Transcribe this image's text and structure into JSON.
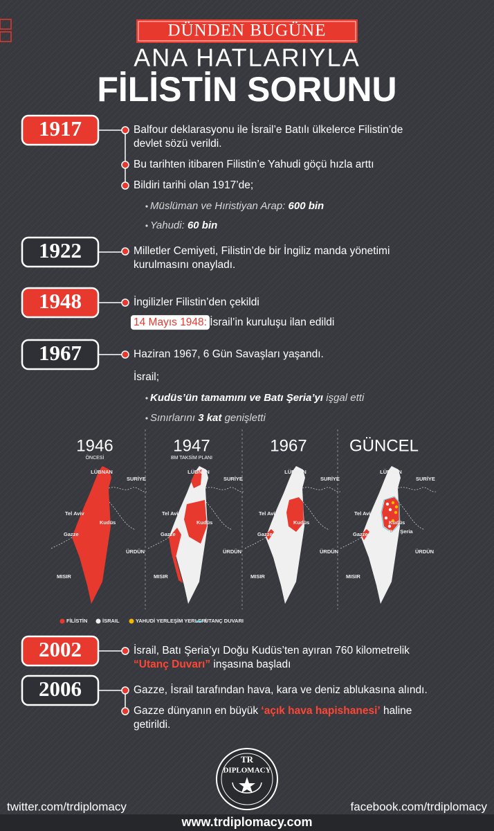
{
  "header": {
    "kicker": "DÜNDEN BUGÜNE",
    "subtitle": "ANA HATLARIYLA",
    "title": "FİLİSTİN SORUNU"
  },
  "timeline": [
    {
      "year": "1917",
      "accent": "red",
      "entries": [
        {
          "kind": "dot",
          "lines": [
            [
              {
                "text": "Balfour deklarasyonu ile İsrail’e Batılı ülkelerce Filistin’de"
              }
            ],
            [
              {
                "text": "devlet sözü verildi."
              }
            ]
          ]
        },
        {
          "kind": "dot",
          "lines": [
            [
              {
                "text": "Bu tarihten itibaren Filistin’e Yahudi göçü hızla arttı"
              }
            ]
          ]
        },
        {
          "kind": "dot",
          "lines": [
            [
              {
                "text": "Bildiri tarihi olan 1917’de;"
              }
            ]
          ]
        },
        {
          "kind": "sub",
          "lines": [
            [
              {
                "text": "Müslüman ve Hıristiyan Arap: "
              },
              {
                "text": "600 bin",
                "style": "bold"
              }
            ]
          ]
        },
        {
          "kind": "sub",
          "lines": [
            [
              {
                "text": "Yahudi: "
              },
              {
                "text": "60 bin",
                "style": "bold"
              }
            ]
          ]
        }
      ]
    },
    {
      "year": "1922",
      "accent": "dark",
      "entries": [
        {
          "kind": "dot",
          "lines": [
            [
              {
                "text": "Milletler Cemiyeti, Filistin’de bir İngiliz manda yönetimi"
              }
            ],
            [
              {
                "text": "kurulmasını onayladı."
              }
            ]
          ]
        }
      ]
    },
    {
      "year": "1948",
      "accent": "red",
      "entries": [
        {
          "kind": "dot",
          "lines": [
            [
              {
                "text": "İngilizler Filistin’den çekildi"
              }
            ]
          ]
        },
        {
          "kind": "plain",
          "lines": [
            [
              {
                "text": "14 Mayıs 1948:",
                "style": "box"
              },
              {
                "text": " İsrail’in kuruluşu ilan edildi"
              }
            ]
          ]
        }
      ]
    },
    {
      "year": "1967",
      "accent": "dark",
      "entries": [
        {
          "kind": "dot",
          "lines": [
            [
              {
                "text": "Haziran 1967, 6 Gün Savaşları yaşandı."
              }
            ]
          ]
        },
        {
          "kind": "plain",
          "lines": [
            [
              {
                "text": "İsrail;"
              }
            ]
          ]
        },
        {
          "kind": "sub",
          "lines": [
            [
              {
                "text": "Kudüs’ün tamamını ve Batı Şeria’yı",
                "style": "bold"
              },
              {
                "text": " işgal etti"
              }
            ]
          ]
        },
        {
          "kind": "sub",
          "lines": [
            [
              {
                "text": "Sınırlarını "
              },
              {
                "text": "3 kat",
                "style": "bold"
              },
              {
                "text": " genişletti"
              }
            ]
          ]
        }
      ]
    },
    {
      "year": "2002",
      "accent": "red",
      "entries": [
        {
          "kind": "dot",
          "lines": [
            [
              {
                "text": "İsrail, Batı Şeria’yı Doğu Kudüs’ten ayıran 760 kilometrelik"
              }
            ],
            [
              {
                "text": "“Utanç Duvarı”",
                "style": "red"
              },
              {
                "text": " inşasına başladı"
              }
            ]
          ]
        }
      ]
    },
    {
      "year": "2006",
      "accent": "dark",
      "entries": [
        {
          "kind": "dot",
          "lines": [
            [
              {
                "text": "Gazze, İsrail tarafından hava, kara ve deniz ablukasına alındı."
              }
            ]
          ]
        },
        {
          "kind": "dot",
          "lines": [
            [
              {
                "text": "Gazze dünyanın en büyük "
              },
              {
                "text": "‘açık hava hapishanesi’",
                "style": "red"
              },
              {
                "text": " haline"
              }
            ],
            [
              {
                "text": "getirildi."
              }
            ]
          ]
        }
      ]
    }
  ],
  "maps": [
    {
      "year": "1946",
      "note": "ÖNCESİ",
      "labels": [
        "LÜBNAN",
        "SURİYE",
        "Tel Aviv",
        "Kudüs",
        "Gazze",
        "ÜRDÜN",
        "MISIR"
      ]
    },
    {
      "year": "1947",
      "note": "BM TAKSİM PLANI",
      "labels": [
        "LÜBNAN",
        "SURİYE",
        "Tel Aviv",
        "Kudüs",
        "Gazze",
        "ÜRDÜN",
        "MISIR"
      ]
    },
    {
      "year": "1967",
      "labels": [
        "LÜBNAN",
        "SURİYE",
        "Tel Aviv",
        "Kudüs",
        "Gazze",
        "ÜRDÜN",
        "MISIR"
      ]
    },
    {
      "year": "GÜNCEL",
      "labels": [
        "LÜBNAN",
        "SURİYE",
        "Tel Aviv",
        "Kudüs",
        "Gazze",
        "ÜRDÜN",
        "MISIR",
        "Batı Şeria"
      ]
    }
  ],
  "legend": [
    {
      "label": "FİLİSTİN",
      "color": "#e8392f"
    },
    {
      "label": "İSRAIL",
      "color": "#f0f0f0"
    },
    {
      "label": "YAHUDİ YERLEŞİM YERLERİ",
      "color": "#f5b800"
    },
    {
      "label": "UTANÇ DUVARI",
      "color": "#5fc9d8",
      "mark": "line"
    }
  ],
  "footer": {
    "twitter": "twitter.com/trdiplomacy",
    "facebook": "facebook.com/trdiplomacy",
    "website": "www.trdiplomacy.com",
    "logo_top": "TR",
    "logo_name": "DIPLOMACY"
  }
}
